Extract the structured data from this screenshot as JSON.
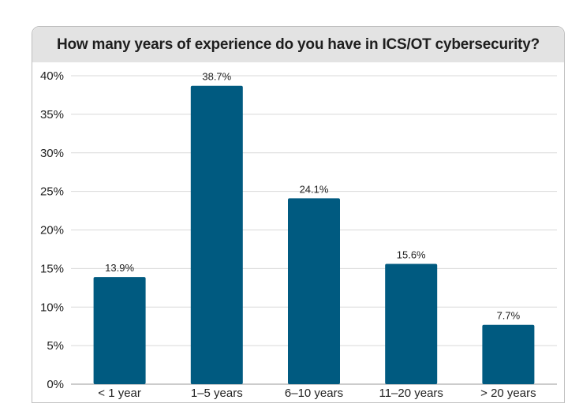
{
  "chart_data": {
    "type": "bar",
    "title": "How many years of experience do you have in ICS/OT cybersecurity?",
    "categories": [
      "< 1 year",
      "1–5 years",
      "6–10 years",
      "11–20 years",
      "> 20 years"
    ],
    "values": [
      13.9,
      38.7,
      24.1,
      15.6,
      7.7
    ],
    "data_labels": [
      "13.9%",
      "38.7%",
      "24.1%",
      "15.6%",
      "7.7%"
    ],
    "yticks": [
      0,
      5,
      10,
      15,
      20,
      25,
      30,
      35,
      40
    ],
    "ytick_labels": [
      "0%",
      "5%",
      "10%",
      "15%",
      "20%",
      "25%",
      "30%",
      "35%",
      "40%"
    ],
    "ylim": [
      0,
      40
    ],
    "grid": true,
    "legend": "none",
    "bar_color": "#005a80"
  }
}
